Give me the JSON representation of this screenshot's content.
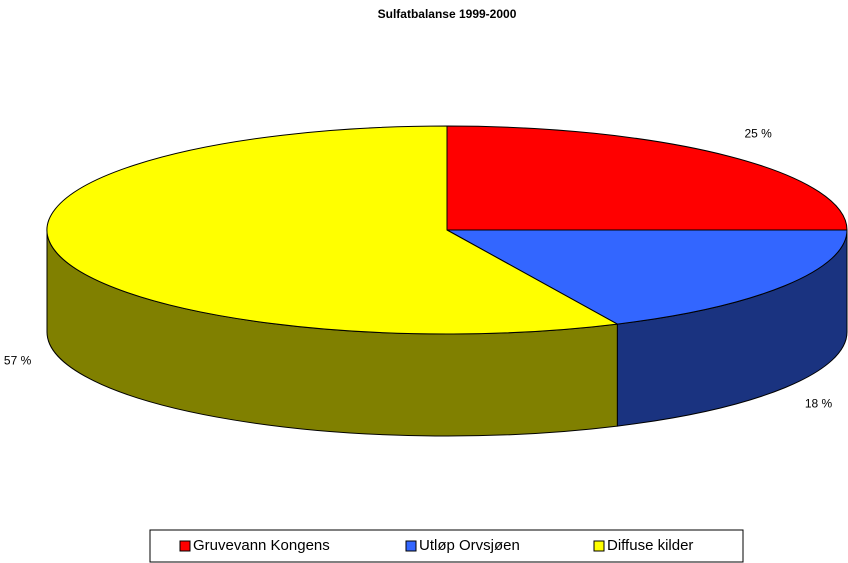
{
  "chart_data": {
    "type": "pie3d",
    "title": "Sulfatbalanse 1999-2000",
    "labels": [
      "Gruvevann Kongens",
      "Utløp Orvsjøen",
      "Diffuse kilder"
    ],
    "values": [
      25,
      18,
      57
    ],
    "value_labels": [
      "25 %",
      "18 %",
      "57 %"
    ],
    "colors": [
      "#ff0000",
      "#3366ff",
      "#ffff00"
    ],
    "legend": "bottom"
  }
}
